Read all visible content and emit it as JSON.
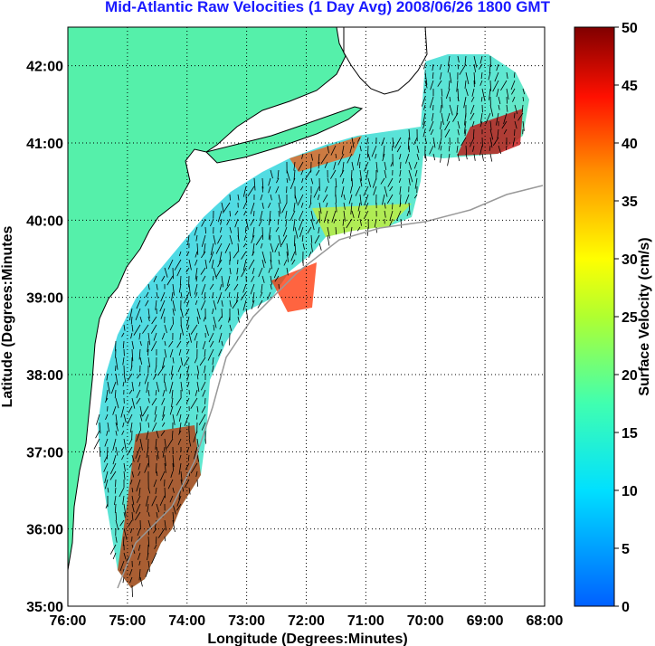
{
  "title": "Mid-Atlantic Raw Velocities (1 Day Avg) 2008/06/26 1800 GMT",
  "map": {
    "xlabel": "Longitude (Degrees:Minutes)",
    "ylabel": "Latitude (Degrees:Minutes",
    "lon_range": [
      -76,
      -68
    ],
    "lat_range": [
      35,
      42.5
    ],
    "lon_ticks": [
      "76:00",
      "75:00",
      "74:00",
      "73:00",
      "72:00",
      "71:00",
      "70:00",
      "69:00",
      "68:00"
    ],
    "lat_ticks": [
      "35:00",
      "36:00",
      "37:00",
      "38:00",
      "39:00",
      "40:00",
      "41:00",
      "42:00"
    ],
    "land_color": "#55f0aa",
    "grid": "dotted"
  },
  "colorbar": {
    "label": "Surface Velocity (cm/s)",
    "ticks": [
      "0",
      "5",
      "10",
      "15",
      "20",
      "25",
      "30",
      "35",
      "40",
      "45",
      "50"
    ],
    "range": [
      0,
      50
    ]
  }
}
